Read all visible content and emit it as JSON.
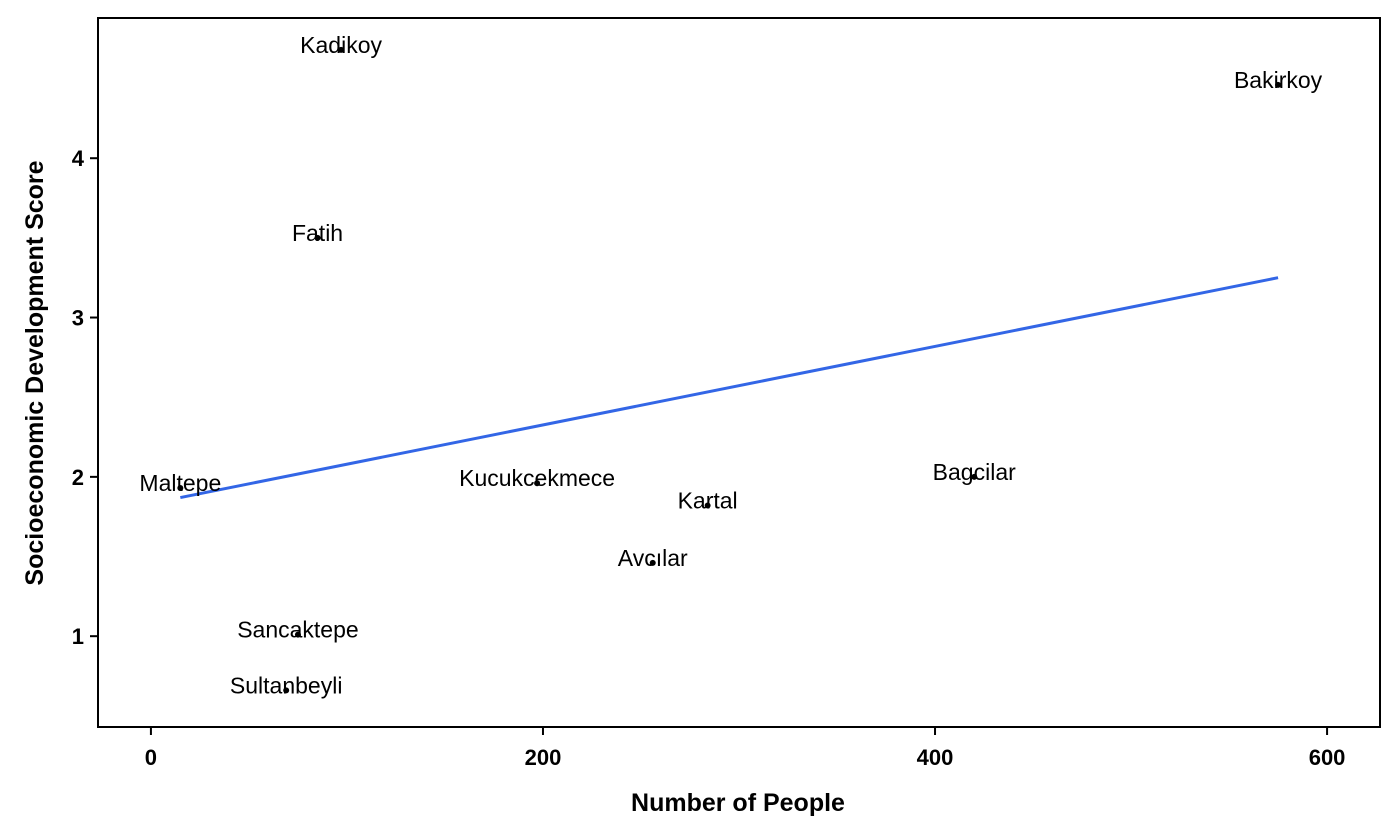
{
  "chart_data": {
    "type": "scatter",
    "title": "",
    "xlabel": "Number of People",
    "ylabel": "Socioeconomic Development Score",
    "xlim": [
      -27,
      627
    ],
    "ylim": [
      0.43,
      4.88
    ],
    "x_ticks": [
      0,
      200,
      400,
      600
    ],
    "y_ticks": [
      1,
      2,
      3,
      4
    ],
    "grid": false,
    "points": [
      {
        "label": "Kadikoy",
        "x": 97,
        "y": 4.68
      },
      {
        "label": "Bakirkoy",
        "x": 575,
        "y": 4.46
      },
      {
        "label": "Fatih",
        "x": 85,
        "y": 3.5
      },
      {
        "label": "Maltepe",
        "x": 15,
        "y": 1.93
      },
      {
        "label": "Kucukcekmece",
        "x": 197,
        "y": 1.96
      },
      {
        "label": "Kartal",
        "x": 284,
        "y": 1.82
      },
      {
        "label": "Bagcilar",
        "x": 420,
        "y": 2.0
      },
      {
        "label": "Avcılar",
        "x": 256,
        "y": 1.46
      },
      {
        "label": "Sancaktepe",
        "x": 75,
        "y": 1.01
      },
      {
        "label": "Sultanbeyli",
        "x": 69,
        "y": 0.66
      }
    ],
    "trend_line": {
      "x": [
        15,
        575
      ],
      "y": [
        1.87,
        3.25
      ],
      "color": "#3366e6"
    }
  }
}
